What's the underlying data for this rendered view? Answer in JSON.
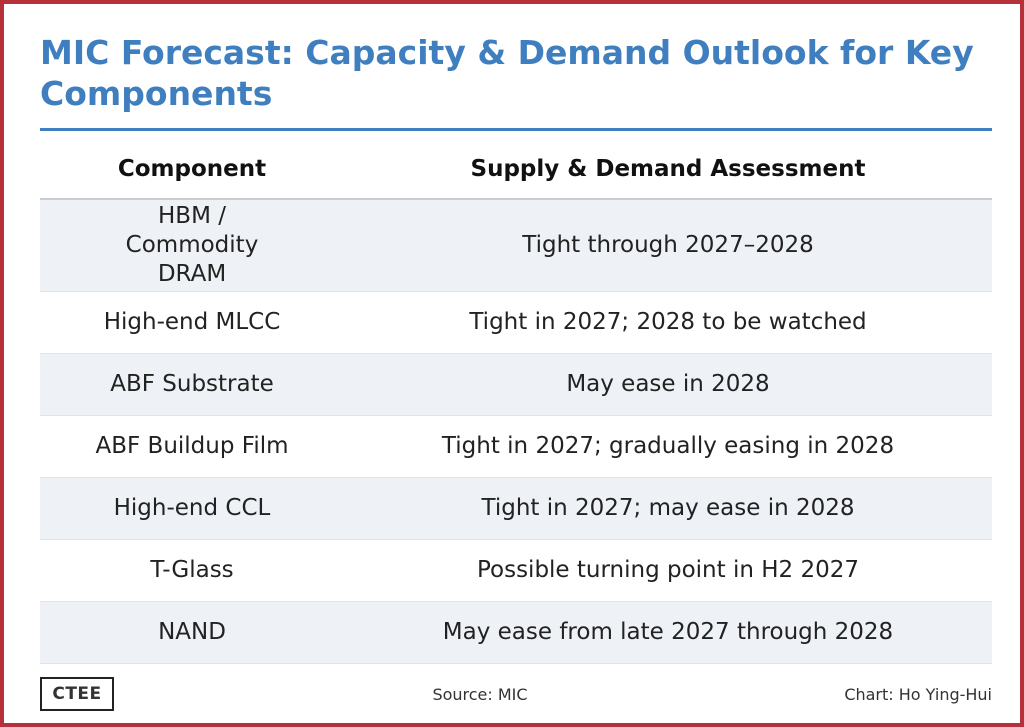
{
  "title": "MIC Forecast: Capacity & Demand Outlook for Key Components",
  "colors": {
    "border": "#b5323a",
    "title": "#3f7fbf",
    "row_shade": "#eef1f6"
  },
  "chart_data": {
    "type": "table",
    "title": "MIC Forecast: Capacity & Demand Outlook for Key Components",
    "columns": [
      "Component",
      "Supply & Demand Assessment"
    ],
    "rows": [
      [
        "HBM / Commodity DRAM",
        "Tight through 2027–2028"
      ],
      [
        "High-end MLCC",
        "Tight in 2027; 2028 to be watched"
      ],
      [
        "ABF Substrate",
        "May ease in 2028"
      ],
      [
        "ABF Buildup Film",
        "Tight in 2027; gradually easing in 2028"
      ],
      [
        "High-end CCL",
        "Tight in 2027; may ease in 2028"
      ],
      [
        "T-Glass",
        "Possible turning point in H2 2027"
      ],
      [
        "NAND",
        "May ease from late 2027 through 2028"
      ]
    ]
  },
  "footer": {
    "logo": "CTEE",
    "source": "Source: MIC",
    "credit": "Chart: Ho Ying-Hui"
  }
}
